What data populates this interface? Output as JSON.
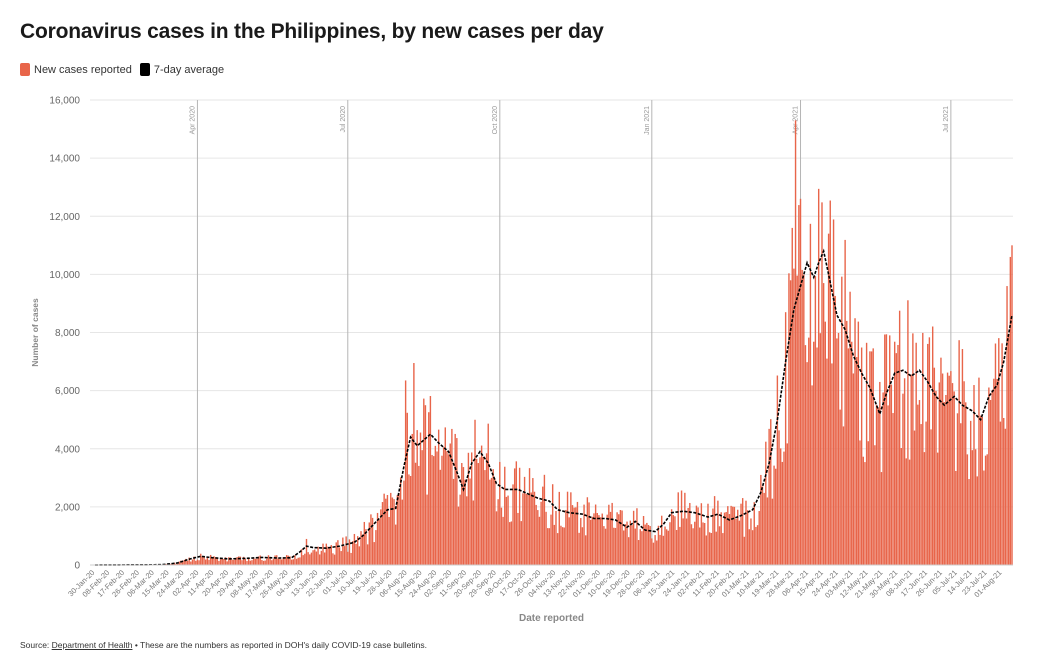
{
  "title": "Coronavirus cases in the Philippines, by new cases per day",
  "legend": [
    {
      "label": "New cases reported",
      "color": "#e8654a"
    },
    {
      "label": "7-day average",
      "color": "#000000"
    }
  ],
  "footer": {
    "prefix": "Source: ",
    "link": "Department of Health",
    "suffix": " • These are the numbers as reported in DOH's daily COVID-19 case bulletins."
  },
  "chart_data": {
    "type": "bar",
    "xlabel": "Date reported",
    "ylabel": "Number of cases",
    "ylim": [
      0,
      16000
    ],
    "yticks": [
      0,
      2000,
      4000,
      6000,
      8000,
      10000,
      12000,
      14000,
      16000
    ],
    "ytick_labels": [
      "0",
      "2,000",
      "4,000",
      "6,000",
      "8,000",
      "10,000",
      "12,000",
      "14,000",
      "16,000"
    ],
    "x_start": "2020-01-30",
    "x_end": "2021-08-07",
    "grid": true,
    "legend_position": "top-left",
    "bar_color": "#e8654a",
    "line_color": "#000000",
    "month_markers": [
      {
        "label": "Apr 2020",
        "date": "2020-04-01"
      },
      {
        "label": "Jul 2020",
        "date": "2020-07-01"
      },
      {
        "label": "Oct 2020",
        "date": "2020-10-01"
      },
      {
        "label": "Jan 2021",
        "date": "2021-01-01"
      },
      {
        "label": "Apr 2021",
        "date": "2021-04-01"
      },
      {
        "label": "Jul 2021",
        "date": "2021-07-01"
      }
    ],
    "xtick_labels": [
      "30-Jan-20",
      "08-Feb-20",
      "17-Feb-20",
      "26-Feb-20",
      "06-Mar-20",
      "15-Mar-20",
      "24-Mar-20",
      "02-Apr-20",
      "11-Apr-20",
      "20-Apr-20",
      "29-Apr-20",
      "08-May-20",
      "17-May-20",
      "26-May-20",
      "04-Jun-20",
      "13-Jun-20",
      "22-Jun-20",
      "01-Jul-20",
      "10-Jul-20",
      "19-Jul-20",
      "28-Jul-20",
      "06-Aug-20",
      "15-Aug-20",
      "24-Aug-20",
      "02-Sep-20",
      "11-Sep-20",
      "20-Sep-20",
      "29-Sep-20",
      "08-Oct-20",
      "17-Oct-20",
      "26-Oct-20",
      "04-Nov-20",
      "13-Nov-20",
      "22-Nov-20",
      "01-Dec-20",
      "10-Dec-20",
      "19-Dec-20",
      "28-Dec-20",
      "06-Jan-21",
      "15-Jan-21",
      "24-Jan-21",
      "02-Feb-21",
      "11-Feb-21",
      "20-Feb-21",
      "01-Mar-21",
      "10-Mar-21",
      "19-Mar-21",
      "28-Mar-21",
      "06-Apr-21",
      "15-Apr-21",
      "24-Apr-21",
      "03-May-21",
      "12-May-21",
      "21-May-21",
      "30-May-21",
      "08-Jun-21",
      "17-Jun-21",
      "26-Jun-21",
      "05-Jul-21",
      "14-Jul-21",
      "23-Jul-21",
      "01-Aug-21"
    ],
    "series": [
      {
        "name": "7-day average",
        "points": [
          [
            "2020-01-30",
            0
          ],
          [
            "2020-03-10",
            10
          ],
          [
            "2020-03-20",
            70
          ],
          [
            "2020-03-27",
            200
          ],
          [
            "2020-04-03",
            300
          ],
          [
            "2020-04-10",
            250
          ],
          [
            "2020-04-20",
            210
          ],
          [
            "2020-05-01",
            230
          ],
          [
            "2020-05-10",
            260
          ],
          [
            "2020-05-20",
            240
          ],
          [
            "2020-05-28",
            250
          ],
          [
            "2020-06-02",
            450
          ],
          [
            "2020-06-06",
            650
          ],
          [
            "2020-06-10",
            600
          ],
          [
            "2020-06-18",
            580
          ],
          [
            "2020-06-26",
            650
          ],
          [
            "2020-07-05",
            780
          ],
          [
            "2020-07-10",
            1000
          ],
          [
            "2020-07-15",
            1300
          ],
          [
            "2020-07-20",
            1600
          ],
          [
            "2020-07-25",
            1900
          ],
          [
            "2020-07-30",
            1950
          ],
          [
            "2020-08-04",
            3400
          ],
          [
            "2020-08-08",
            4400
          ],
          [
            "2020-08-12",
            4100
          ],
          [
            "2020-08-16",
            4300
          ],
          [
            "2020-08-20",
            4500
          ],
          [
            "2020-08-25",
            4200
          ],
          [
            "2020-08-31",
            3900
          ],
          [
            "2020-09-05",
            3200
          ],
          [
            "2020-09-09",
            2600
          ],
          [
            "2020-09-14",
            3500
          ],
          [
            "2020-09-19",
            3900
          ],
          [
            "2020-09-24",
            3500
          ],
          [
            "2020-09-29",
            2800
          ],
          [
            "2020-10-04",
            2600
          ],
          [
            "2020-10-12",
            2600
          ],
          [
            "2020-10-18",
            2450
          ],
          [
            "2020-10-24",
            2300
          ],
          [
            "2020-10-31",
            2200
          ],
          [
            "2020-11-05",
            1900
          ],
          [
            "2020-11-12",
            1800
          ],
          [
            "2020-11-20",
            1750
          ],
          [
            "2020-11-27",
            1600
          ],
          [
            "2020-12-04",
            1600
          ],
          [
            "2020-12-10",
            1550
          ],
          [
            "2020-12-17",
            1300
          ],
          [
            "2020-12-22",
            1500
          ],
          [
            "2020-12-28",
            1200
          ],
          [
            "2021-01-03",
            1150
          ],
          [
            "2021-01-08",
            1400
          ],
          [
            "2021-01-13",
            1800
          ],
          [
            "2021-01-20",
            1850
          ],
          [
            "2021-01-27",
            1800
          ],
          [
            "2021-02-04",
            1650
          ],
          [
            "2021-02-10",
            1750
          ],
          [
            "2021-02-17",
            1550
          ],
          [
            "2021-02-24",
            1700
          ],
          [
            "2021-03-03",
            1900
          ],
          [
            "2021-03-08",
            2500
          ],
          [
            "2021-03-13",
            3500
          ],
          [
            "2021-03-18",
            5000
          ],
          [
            "2021-03-23",
            7000
          ],
          [
            "2021-03-28",
            8800
          ],
          [
            "2021-04-02",
            9800
          ],
          [
            "2021-04-05",
            10400
          ],
          [
            "2021-04-09",
            9900
          ],
          [
            "2021-04-12",
            10400
          ],
          [
            "2021-04-15",
            10800
          ],
          [
            "2021-04-18",
            10000
          ],
          [
            "2021-04-23",
            8600
          ],
          [
            "2021-04-28",
            8100
          ],
          [
            "2021-05-03",
            7200
          ],
          [
            "2021-05-08",
            6600
          ],
          [
            "2021-05-13",
            6100
          ],
          [
            "2021-05-19",
            5200
          ],
          [
            "2021-05-23",
            5900
          ],
          [
            "2021-05-28",
            6600
          ],
          [
            "2021-06-02",
            6700
          ],
          [
            "2021-06-07",
            6500
          ],
          [
            "2021-06-12",
            6700
          ],
          [
            "2021-06-17",
            6300
          ],
          [
            "2021-06-22",
            5800
          ],
          [
            "2021-06-27",
            5500
          ],
          [
            "2021-07-03",
            5800
          ],
          [
            "2021-07-08",
            5500
          ],
          [
            "2021-07-14",
            5300
          ],
          [
            "2021-07-19",
            5000
          ],
          [
            "2021-07-24",
            5800
          ],
          [
            "2021-07-29",
            6200
          ],
          [
            "2021-08-02",
            7000
          ],
          [
            "2021-08-07",
            8600
          ]
        ]
      }
    ]
  }
}
